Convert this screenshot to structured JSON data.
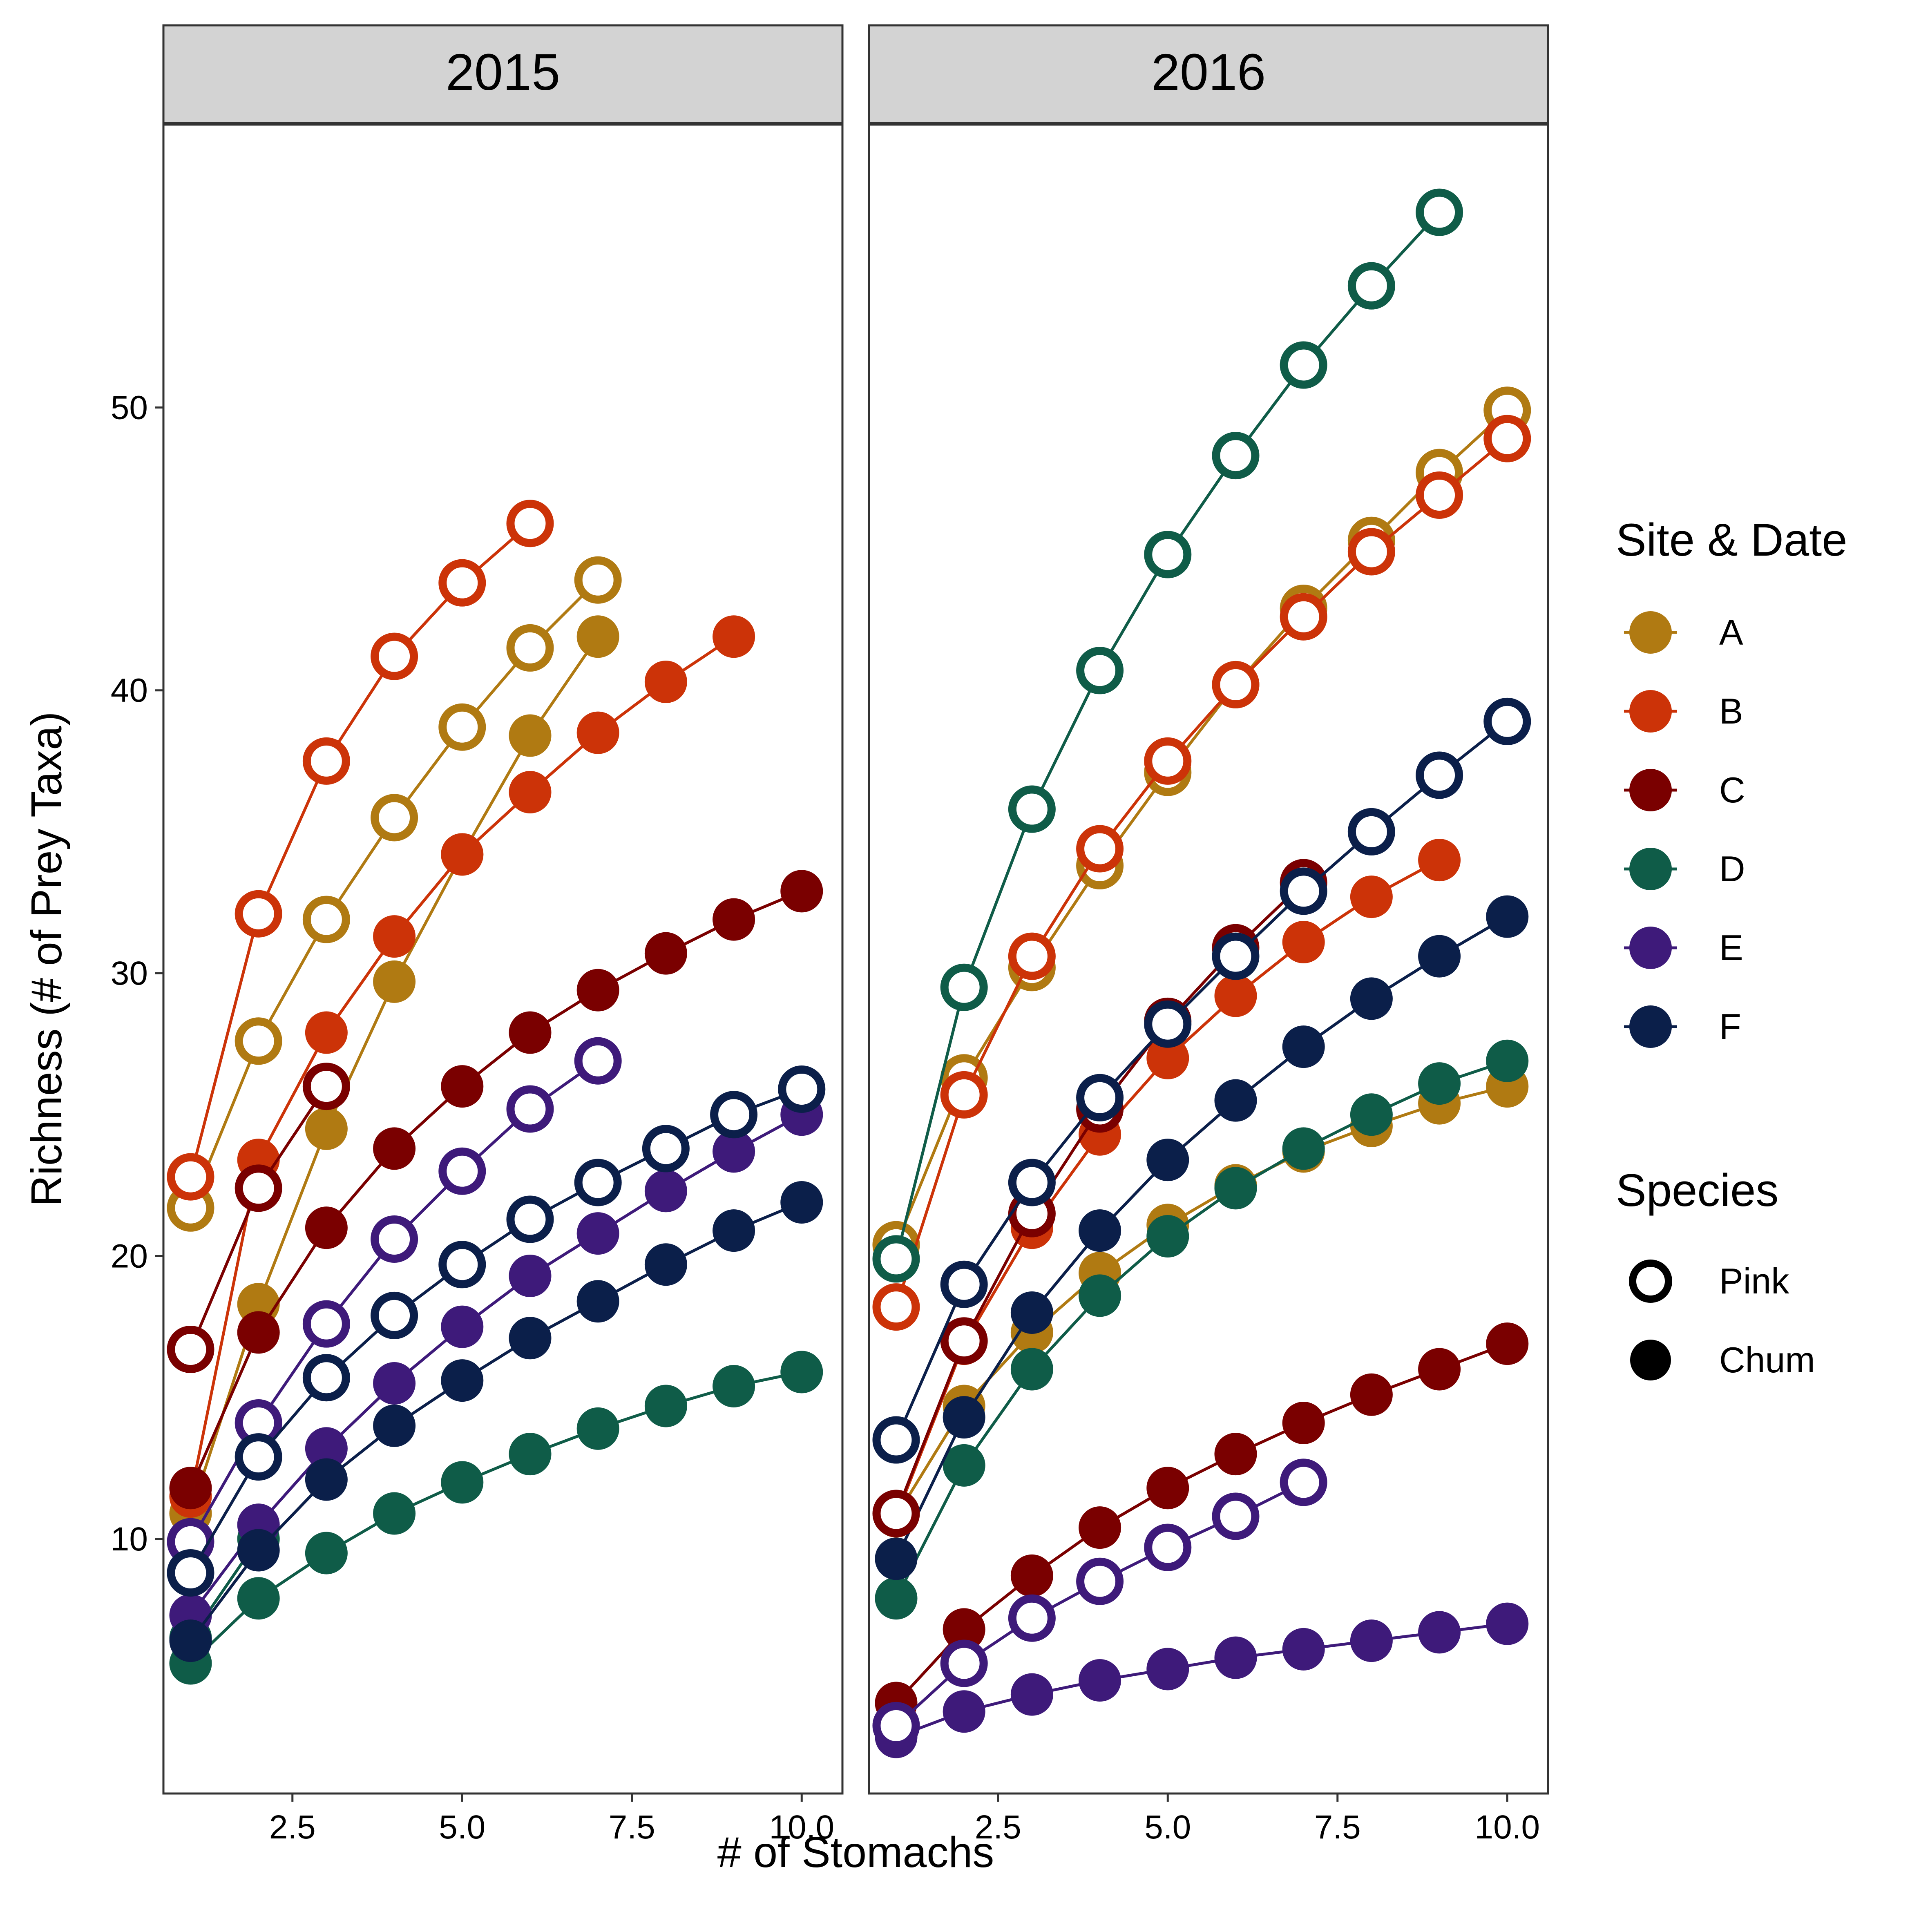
{
  "chart_data": {
    "type": "line",
    "facets": [
      {
        "title": "2015",
        "series": [
          {
            "site": "A",
            "species": "Pink",
            "x": [
              1,
              2,
              3,
              4,
              5,
              6,
              7
            ],
            "y": [
              21.7,
              27.6,
              31.9,
              35.5,
              38.7,
              41.5,
              43.9
            ]
          },
          {
            "site": "A",
            "species": "Chum",
            "x": [
              1,
              2,
              3,
              4,
              5,
              6,
              7
            ],
            "y": [
              10.9,
              18.3,
              24.5,
              29.7,
              34.2,
              38.4,
              41.9
            ]
          },
          {
            "site": "B",
            "species": "Pink",
            "x": [
              1,
              2,
              3,
              4,
              5,
              6
            ],
            "y": [
              22.8,
              32.1,
              37.5,
              41.2,
              43.8,
              45.9
            ]
          },
          {
            "site": "B",
            "species": "Chum",
            "x": [
              1,
              2,
              3,
              4,
              5,
              6,
              7,
              8,
              9
            ],
            "y": [
              11.5,
              23.4,
              27.9,
              31.3,
              34.2,
              36.4,
              38.5,
              40.3,
              41.9
            ]
          },
          {
            "site": "C",
            "species": "Pink",
            "x": [
              1,
              2,
              3
            ],
            "y": [
              16.7,
              22.4,
              26.0
            ]
          },
          {
            "site": "C",
            "species": "Chum",
            "x": [
              1,
              2,
              3,
              4,
              5,
              6,
              7,
              8,
              9,
              10
            ],
            "y": [
              11.8,
              17.3,
              21.0,
              23.8,
              26.0,
              27.9,
              29.4,
              30.7,
              31.9,
              32.9
            ]
          },
          {
            "site": "D",
            "species": "Chum",
            "x": [
              1,
              2,
              3,
              4,
              5,
              6,
              7,
              8,
              9,
              10
            ],
            "y": [
              5.6,
              7.9,
              9.5,
              10.9,
              12.0,
              13.0,
              13.9,
              14.7,
              15.4,
              15.9
            ]
          },
          {
            "site": "D",
            "species": "Chum",
            "x": [
              1,
              2
            ],
            "y": [
              6.5,
              10.0
            ]
          },
          {
            "site": "E",
            "species": "Pink",
            "x": [
              1,
              2,
              3,
              4,
              5,
              6,
              7
            ],
            "y": [
              9.9,
              14.1,
              17.6,
              20.6,
              23.0,
              25.2,
              26.9
            ]
          },
          {
            "site": "E",
            "species": "Chum",
            "x": [
              1,
              2,
              3,
              4,
              5,
              6,
              7,
              8,
              9,
              10
            ],
            "y": [
              7.3,
              10.5,
              13.2,
              15.5,
              17.5,
              19.3,
              20.8,
              22.3,
              23.7,
              25.0
            ]
          },
          {
            "site": "F",
            "species": "Pink",
            "x": [
              1,
              2,
              3,
              4,
              5,
              6,
              7,
              8,
              9,
              10
            ],
            "y": [
              8.8,
              12.9,
              15.7,
              17.9,
              19.7,
              21.3,
              22.6,
              23.8,
              25.0,
              25.9
            ]
          },
          {
            "site": "F",
            "species": "Chum",
            "x": [
              1,
              2,
              3,
              4,
              5,
              6,
              7,
              8,
              9,
              10
            ],
            "y": [
              6.4,
              9.6,
              12.1,
              14.0,
              15.6,
              17.1,
              18.4,
              19.7,
              20.9,
              21.9
            ]
          }
        ]
      },
      {
        "title": "2016",
        "series": [
          {
            "site": "A",
            "species": "Pink",
            "x": [
              1,
              2,
              3,
              4,
              5,
              6,
              7,
              8,
              9,
              10
            ],
            "y": [
              20.4,
              26.3,
              30.2,
              33.8,
              37.1,
              40.2,
              42.9,
              45.3,
              47.7,
              49.9
            ]
          },
          {
            "site": "A",
            "species": "Chum",
            "x": [
              1,
              2,
              3,
              4,
              5,
              6,
              7,
              8,
              9,
              10
            ],
            "y": [
              10.8,
              14.7,
              17.3,
              19.4,
              21.1,
              22.5,
              23.7,
              24.6,
              25.4,
              26.0
            ]
          },
          {
            "site": "B",
            "species": "Pink",
            "x": [
              1,
              2,
              3,
              4,
              5,
              6,
              7,
              8,
              9,
              10
            ],
            "y": [
              18.2,
              25.7,
              30.6,
              34.4,
              37.5,
              40.2,
              42.6,
              44.9,
              46.9,
              48.9
            ]
          },
          {
            "site": "B",
            "species": "Chum",
            "x": [
              1,
              2,
              3,
              4,
              5,
              6,
              7,
              8,
              9
            ],
            "y": [
              10.8,
              16.9,
              21.0,
              24.3,
              27.0,
              29.2,
              31.1,
              32.7,
              34.0
            ]
          },
          {
            "site": "C",
            "species": "Pink",
            "x": [
              1,
              2,
              3,
              4,
              5,
              6,
              7
            ],
            "y": [
              10.9,
              17.0,
              21.5,
              25.2,
              28.3,
              30.9,
              33.2
            ]
          },
          {
            "site": "C",
            "species": "Chum",
            "x": [
              1,
              2,
              3,
              4,
              5,
              6,
              7,
              8,
              9,
              10
            ],
            "y": [
              4.2,
              6.8,
              8.7,
              10.4,
              11.8,
              13.0,
              14.1,
              15.1,
              16.0,
              16.9
            ]
          },
          {
            "site": "D",
            "species": "Pink",
            "x": [
              1,
              2,
              3,
              4,
              5,
              6,
              7,
              8,
              9
            ],
            "y": [
              19.9,
              29.5,
              35.8,
              40.7,
              44.8,
              48.3,
              51.5,
              54.3,
              56.9
            ]
          },
          {
            "site": "D",
            "species": "Chum",
            "x": [
              1,
              2,
              3,
              4,
              5,
              6,
              7,
              8,
              9,
              10
            ],
            "y": [
              7.9,
              12.6,
              16.0,
              18.6,
              20.7,
              22.4,
              23.8,
              25.0,
              26.1,
              26.9
            ]
          },
          {
            "site": "E",
            "species": "Pink",
            "x": [
              1,
              2,
              3,
              4,
              5,
              6,
              7
            ],
            "y": [
              3.4,
              5.6,
              7.2,
              8.5,
              9.7,
              10.8,
              12.0
            ]
          },
          {
            "site": "E",
            "species": "Chum",
            "x": [
              1,
              2,
              3,
              4,
              5,
              6,
              7,
              8,
              9,
              10
            ],
            "y": [
              3.0,
              3.9,
              4.5,
              5.0,
              5.4,
              5.8,
              6.1,
              6.4,
              6.7,
              7.0
            ]
          },
          {
            "site": "F",
            "species": "Pink",
            "x": [
              1,
              2,
              3,
              4,
              5,
              6,
              7,
              8,
              9,
              10
            ],
            "y": [
              13.5,
              19.0,
              22.6,
              25.6,
              28.2,
              30.6,
              32.9,
              35.0,
              37.0,
              38.9
            ]
          },
          {
            "site": "F",
            "species": "Chum",
            "x": [
              1,
              2,
              3,
              4,
              5,
              6,
              7,
              8,
              9,
              10
            ],
            "y": [
              9.3,
              14.3,
              18.0,
              20.9,
              23.4,
              25.5,
              27.4,
              29.1,
              30.6,
              32.0
            ]
          }
        ]
      }
    ],
    "xlabel": "# of Stomachs",
    "ylabel": "Richness (# of Prey Taxa)",
    "xlim": [
      0.6,
      10.6
    ],
    "ylim": [
      1,
      60
    ],
    "xticks": [
      2.5,
      5.0,
      7.5,
      10.0
    ],
    "xtick_labels": [
      "2.5",
      "5.0",
      "7.5",
      "10.0"
    ],
    "yticks": [
      10,
      20,
      30,
      40,
      50
    ],
    "ytick_labels": [
      "10",
      "20",
      "30",
      "40",
      "50"
    ],
    "grid": false,
    "legend": {
      "placement": "right",
      "site_title": "Site & Date",
      "sites": [
        {
          "label": "A",
          "color": "#B07A12"
        },
        {
          "label": "B",
          "color": "#CC3308"
        },
        {
          "label": "C",
          "color": "#7A0000"
        },
        {
          "label": "D",
          "color": "#0F5C48"
        },
        {
          "label": "E",
          "color": "#3E1A7A"
        },
        {
          "label": "F",
          "color": "#0B1F4A"
        }
      ],
      "species_title": "Species",
      "species": [
        {
          "label": "Pink",
          "marker": "hollow-circle"
        },
        {
          "label": "Chum",
          "marker": "filled-circle"
        }
      ]
    }
  }
}
